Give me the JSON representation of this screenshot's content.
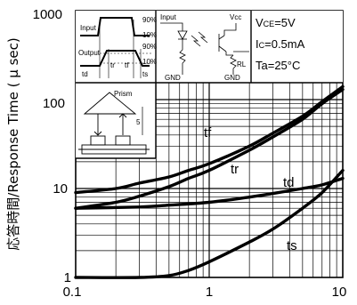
{
  "chart_data": {
    "type": "line",
    "title": "",
    "ylabel": "応答時間/Response Time ( μ sec)",
    "xlabel": "",
    "x_scale": "log",
    "y_scale": "log",
    "xlim": [
      0.1,
      10
    ],
    "ylim": [
      1,
      1000
    ],
    "x_tick_labels": [
      "0.1",
      "1",
      "10"
    ],
    "y_tick_labels": [
      "1",
      "10",
      "100",
      "1000"
    ],
    "grid": true,
    "series": [
      {
        "name": "tf",
        "x": [
          0.1,
          0.2,
          0.3,
          0.5,
          0.7,
          1,
          2,
          3,
          5,
          7,
          10
        ],
        "y": [
          9,
          10,
          11.5,
          13.5,
          16,
          19,
          30,
          42,
          65,
          95,
          140
        ]
      },
      {
        "name": "tr",
        "x": [
          0.1,
          0.2,
          0.3,
          0.5,
          0.7,
          1,
          2,
          3,
          5,
          7,
          10
        ],
        "y": [
          6,
          7,
          8.2,
          10.5,
          13,
          16,
          27,
          38,
          60,
          90,
          130
        ]
      },
      {
        "name": "td",
        "x": [
          0.1,
          0.3,
          0.5,
          1,
          2,
          3,
          5,
          7,
          10
        ],
        "y": [
          6,
          6.2,
          6.5,
          7,
          8,
          8.8,
          10,
          11,
          13
        ]
      },
      {
        "name": "ts",
        "x": [
          0.1,
          0.3,
          0.5,
          0.7,
          1,
          2,
          3,
          5,
          7,
          10
        ],
        "y": [
          1,
          1,
          1.05,
          1.2,
          1.5,
          2.5,
          3.5,
          6,
          9,
          16
        ]
      }
    ],
    "conditions": [
      "V",
      "CE",
      "=5V",
      "I",
      "C",
      "=0.5mA",
      "Ta=25°C"
    ],
    "waveform_inset": {
      "input_label": "Input",
      "output_label": "Output",
      "levels": [
        "90%",
        "10%",
        "90%",
        "10%"
      ],
      "times": [
        "td",
        "tr",
        "tf",
        "ts"
      ]
    },
    "circuit_inset": {
      "input_label": "Input",
      "vcc_label": "Vcc",
      "rl_label": "RL",
      "gnd_left": "GND",
      "gnd_right": "GND"
    },
    "prism_inset": {
      "label": "Prism",
      "distance": "5"
    }
  }
}
